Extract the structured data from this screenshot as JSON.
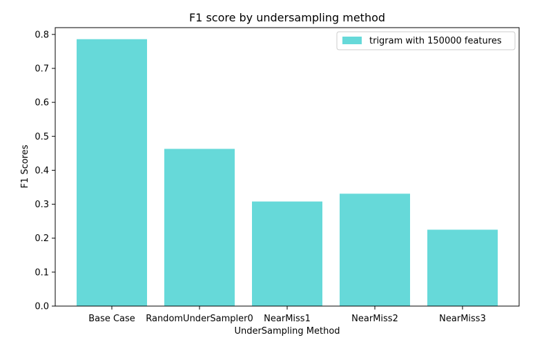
{
  "chart_data": {
    "type": "bar",
    "title": "F1 score by undersampling method",
    "xlabel": "UnderSampling Method",
    "ylabel": "F1 Scores",
    "categories": [
      "Base Case",
      "RandomUnderSampler0",
      "NearMiss1",
      "NearMiss2",
      "NearMiss3"
    ],
    "series": [
      {
        "name": "trigram with 150000 features",
        "values": [
          0.786,
          0.463,
          0.308,
          0.331,
          0.225
        ],
        "color": "#66d9d9"
      }
    ],
    "ylim": [
      0,
      0.82
    ],
    "yticks": [
      "0.0",
      "0.1",
      "0.2",
      "0.3",
      "0.4",
      "0.5",
      "0.6",
      "0.7",
      "0.8"
    ],
    "grid": false,
    "legend_position": "top-right"
  }
}
